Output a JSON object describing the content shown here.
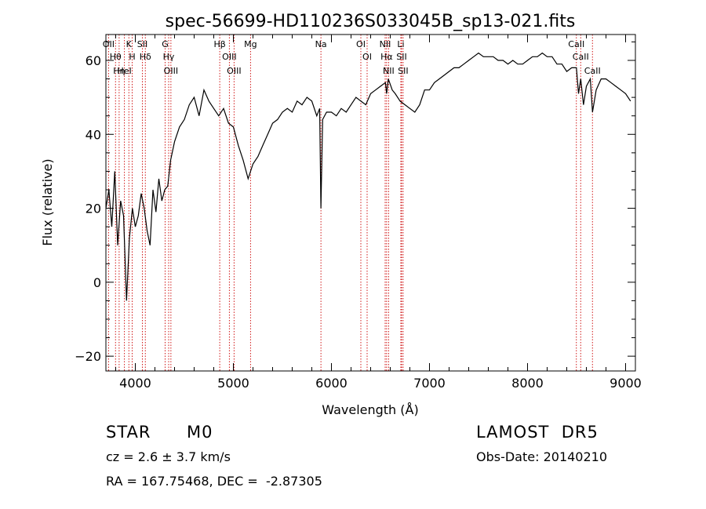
{
  "chart_data": {
    "type": "line",
    "title": "spec-56699-HD110236S033045B_sp13-021.fits",
    "xlabel": "Wavelength (Å)",
    "ylabel": "Flux (relative)",
    "xlim": [
      3700,
      9100
    ],
    "ylim": [
      -24,
      67
    ],
    "xticks": [
      4000,
      5000,
      6000,
      7000,
      8000,
      9000
    ],
    "yticks": [
      -20,
      0,
      20,
      40,
      60
    ],
    "grid": false,
    "line_color": "#000000",
    "marker_color": "#cc0000",
    "series": [
      {
        "x": [
          3700,
          3730,
          3760,
          3790,
          3820,
          3850,
          3880,
          3910,
          3940,
          3970,
          4000,
          4030,
          4060,
          4090,
          4120,
          4150,
          4180,
          4210,
          4240,
          4270,
          4300,
          4330,
          4360,
          4400,
          4450,
          4500,
          4550,
          4600,
          4650,
          4700,
          4750,
          4800,
          4850,
          4900,
          4950,
          5000,
          5050,
          5100,
          5150,
          5200,
          5250,
          5300,
          5350,
          5400,
          5450,
          5500,
          5550,
          5600,
          5650,
          5700,
          5750,
          5800,
          5850,
          5880,
          5893,
          5910,
          5950,
          6000,
          6050,
          6100,
          6150,
          6200,
          6250,
          6300,
          6350,
          6400,
          6450,
          6500,
          6550,
          6563,
          6580,
          6620,
          6650,
          6700,
          6750,
          6800,
          6850,
          6900,
          6950,
          7000,
          7050,
          7100,
          7150,
          7200,
          7250,
          7300,
          7350,
          7400,
          7450,
          7500,
          7550,
          7600,
          7650,
          7700,
          7750,
          7800,
          7850,
          7900,
          7950,
          8000,
          8050,
          8100,
          8150,
          8200,
          8250,
          8300,
          8350,
          8400,
          8450,
          8498,
          8520,
          8542,
          8570,
          8600,
          8640,
          8662,
          8700,
          8750,
          8800,
          8850,
          8900,
          8950,
          9000,
          9050
        ],
        "y": [
          20,
          25,
          15,
          30,
          10,
          22,
          18,
          -5,
          12,
          20,
          15,
          18,
          24,
          20,
          14,
          10,
          25,
          19,
          28,
          22,
          25,
          26,
          33,
          38,
          42,
          44,
          48,
          50,
          45,
          52,
          49,
          47,
          45,
          47,
          43,
          42,
          37,
          33,
          28,
          32,
          34,
          37,
          40,
          43,
          44,
          46,
          47,
          46,
          49,
          48,
          50,
          49,
          45,
          47,
          20,
          44,
          46,
          46,
          45,
          47,
          46,
          48,
          50,
          49,
          48,
          51,
          52,
          53,
          54,
          51,
          55,
          52,
          51,
          49,
          48,
          47,
          46,
          48,
          52,
          52,
          54,
          55,
          56,
          57,
          58,
          58,
          59,
          60,
          61,
          62,
          61,
          61,
          61,
          60,
          60,
          59,
          60,
          59,
          59,
          60,
          61,
          61,
          62,
          61,
          61,
          59,
          59,
          57,
          58,
          58,
          51,
          55,
          48,
          53,
          55,
          46,
          52,
          55,
          55,
          54,
          53,
          52,
          51,
          49
        ]
      }
    ],
    "lines": [
      {
        "label": "Hθ",
        "x": 3798
      },
      {
        "label": "OII",
        "x": 3727
      },
      {
        "label": "Hη",
        "x": 3835
      },
      {
        "label": "K",
        "x": 3934
      },
      {
        "label": "HeI",
        "x": 3889
      },
      {
        "label": "H",
        "x": 3968
      },
      {
        "label": "Hδ",
        "x": 4102
      },
      {
        "label": "SII",
        "x": 4072
      },
      {
        "label": "Hγ",
        "x": 4340
      },
      {
        "label": "G",
        "x": 4304
      },
      {
        "label": "OIII",
        "x": 4363
      },
      {
        "label": "Hβ",
        "x": 4861
      },
      {
        "label": "OIII",
        "x": 4959
      },
      {
        "label": "OIII",
        "x": 5007
      },
      {
        "label": "Mg",
        "x": 5175
      },
      {
        "label": "Na",
        "x": 5893
      },
      {
        "label": "OI",
        "x": 6300
      },
      {
        "label": "OI",
        "x": 6364
      },
      {
        "label": "Hα",
        "x": 6563
      },
      {
        "label": "NII",
        "x": 6548
      },
      {
        "label": "NII",
        "x": 6583
      },
      {
        "label": "Li",
        "x": 6708
      },
      {
        "label": "SII",
        "x": 6716
      },
      {
        "label": "SII",
        "x": 6731
      },
      {
        "label": "CaII",
        "x": 8498
      },
      {
        "label": "CaII",
        "x": 8542
      },
      {
        "label": "CaII",
        "x": 8662
      }
    ]
  },
  "footer": {
    "object_type": "STAR",
    "subclass": "M0",
    "survey": "LAMOST  DR5",
    "cz": "cz = 2.6 ± 3.7 km/s",
    "obs_date": "Obs-Date: 20140210",
    "coords": "RA = 167.75468, DEC =  -2.87305"
  }
}
